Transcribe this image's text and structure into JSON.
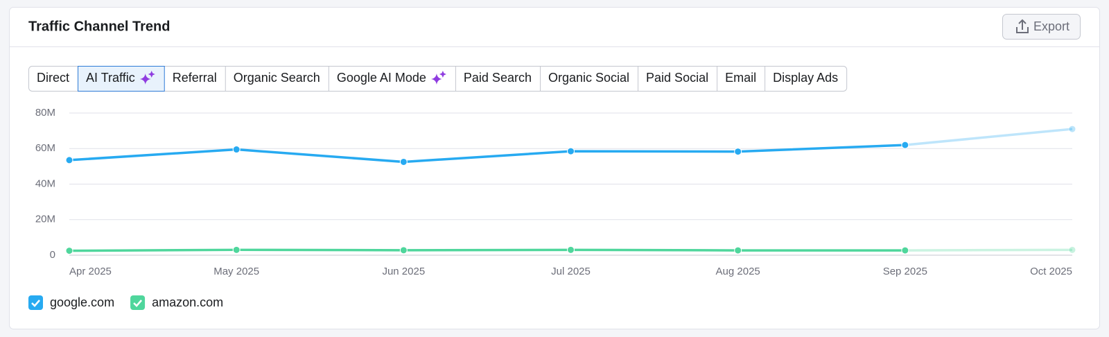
{
  "header": {
    "title": "Traffic Channel Trend",
    "export": "Export"
  },
  "tabs": {
    "active": 1,
    "items": [
      {
        "label": "Direct"
      },
      {
        "label": "AI Traffic",
        "icon": "sparkle"
      },
      {
        "label": "Referral"
      },
      {
        "label": "Organic Search"
      },
      {
        "label": "Google AI Mode",
        "icon": "sparkle"
      },
      {
        "label": "Paid Search"
      },
      {
        "label": "Organic Social"
      },
      {
        "label": "Paid Social"
      },
      {
        "label": "Email"
      },
      {
        "label": "Display Ads"
      }
    ]
  },
  "chart_data": {
    "type": "line",
    "categories": [
      "Apr 2025",
      "May 2025",
      "Jun 2025",
      "Jul 2025",
      "Aug 2025",
      "Sep 2025",
      "Oct 2025"
    ],
    "series": [
      {
        "name": "google.com",
        "color": "#27aaf1",
        "values": [
          53.5,
          59.5,
          52.5,
          58.5,
          58.3,
          62,
          71
        ]
      },
      {
        "name": "amazon.com",
        "color": "#4fd69c",
        "values": [
          2.5,
          3,
          2.8,
          3,
          2.7,
          2.7,
          3
        ]
      }
    ],
    "ylim": [
      0,
      80
    ],
    "yticks": [
      0,
      {
        "value": 20,
        "label": "20M"
      },
      {
        "value": 40,
        "label": "40M"
      },
      {
        "value": 60,
        "label": "60M"
      },
      {
        "value": 80,
        "label": "80M"
      }
    ],
    "grid": true
  }
}
